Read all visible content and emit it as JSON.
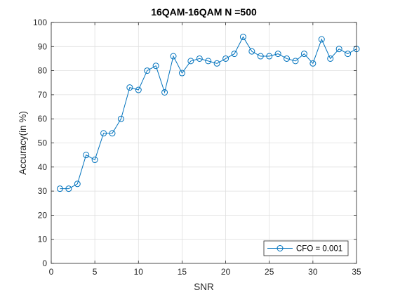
{
  "chart_data": {
    "type": "line",
    "title": "16QAM-16QAM N =500",
    "xlabel": "SNR",
    "ylabel": "Accuracy(in %)",
    "xlim": [
      0,
      35
    ],
    "ylim": [
      0,
      100
    ],
    "xticks": [
      0,
      5,
      10,
      15,
      20,
      25,
      30,
      35
    ],
    "yticks": [
      0,
      10,
      20,
      30,
      40,
      50,
      60,
      70,
      80,
      90,
      100
    ],
    "grid": true,
    "legend_position": "bottom-right",
    "series": [
      {
        "name": "CFO = 0.001",
        "color": "#0072BD",
        "marker": "circle",
        "x": [
          1,
          2,
          3,
          4,
          5,
          6,
          7,
          8,
          9,
          10,
          11,
          12,
          13,
          14,
          15,
          16,
          17,
          18,
          19,
          20,
          21,
          22,
          23,
          24,
          25,
          26,
          27,
          28,
          29,
          30,
          31,
          32,
          33,
          34,
          35
        ],
        "y": [
          31,
          31,
          33,
          45,
          43,
          54,
          54,
          60,
          73,
          72,
          80,
          82,
          71,
          86,
          79,
          84,
          85,
          84,
          83,
          85,
          87,
          94,
          88,
          86,
          86,
          87,
          85,
          84,
          87,
          83,
          93,
          85,
          89,
          87,
          89
        ]
      }
    ]
  }
}
